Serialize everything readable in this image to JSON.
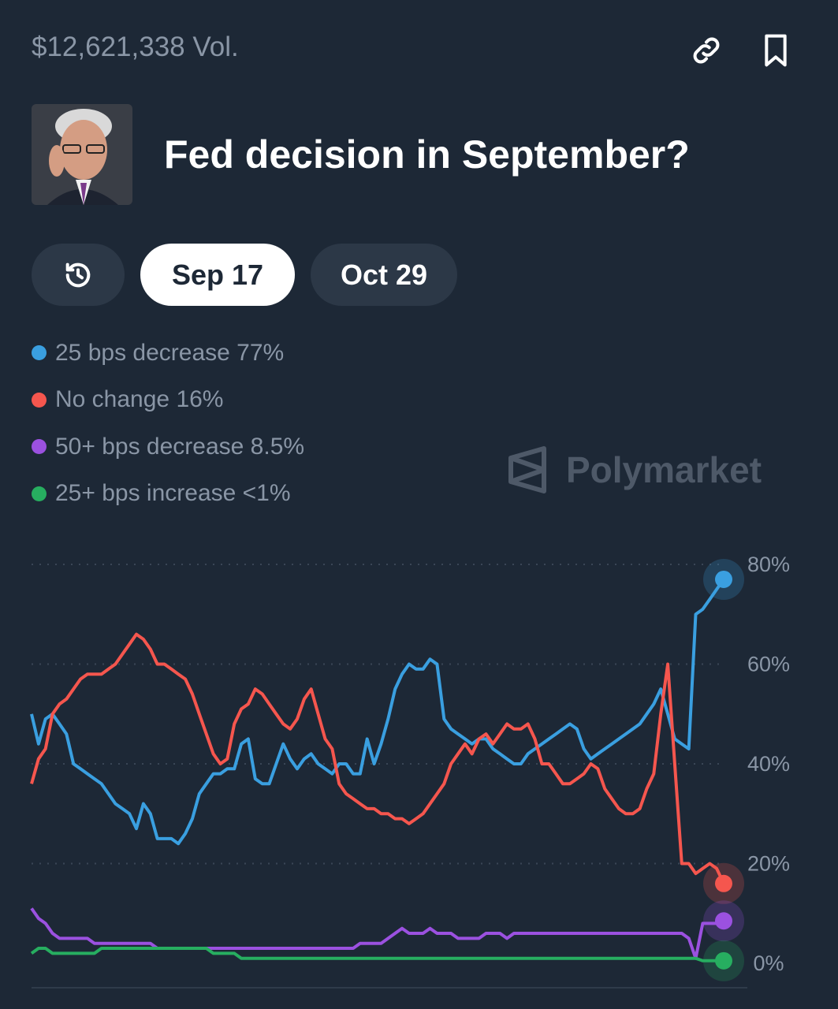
{
  "header": {
    "volume": "$12,621,338 Vol."
  },
  "market": {
    "title": "Fed decision in September?"
  },
  "tabs": [
    {
      "label": "",
      "icon": "history-icon"
    },
    {
      "label": "Sep 17",
      "active": true
    },
    {
      "label": "Oct 29"
    }
  ],
  "watermark": "Polymarket",
  "legend": [
    {
      "label": "25 bps decrease 77%",
      "color": "#3a9fe0"
    },
    {
      "label": "No change 16%",
      "color": "#f5564e"
    },
    {
      "label": "50+ bps decrease 8.5%",
      "color": "#9b51e0"
    },
    {
      "label": "25+ bps increase <1%",
      "color": "#27ae60"
    }
  ],
  "chart_data": {
    "type": "line",
    "ylim": [
      0,
      80
    ],
    "yticks": [
      "80%",
      "60%",
      "40%",
      "20%",
      "0%"
    ],
    "ytick_values": [
      80,
      60,
      40,
      20,
      0
    ],
    "grid": true,
    "series": [
      {
        "name": "25 bps decrease",
        "color": "#3a9fe0",
        "values": [
          50,
          44,
          49,
          50,
          48,
          46,
          40,
          39,
          38,
          37,
          36,
          34,
          32,
          31,
          30,
          27,
          32,
          30,
          25,
          25,
          25,
          24,
          26,
          29,
          34,
          36,
          38,
          38,
          39,
          39,
          44,
          45,
          37,
          36,
          36,
          40,
          44,
          41,
          39,
          41,
          42,
          40,
          39,
          38,
          40,
          40,
          38,
          38,
          45,
          40,
          44,
          49,
          55,
          58,
          60,
          59,
          59,
          61,
          60,
          49,
          47,
          46,
          45,
          44,
          45,
          45,
          43,
          42,
          41,
          40,
          40,
          42,
          43,
          44,
          45,
          46,
          47,
          48,
          47,
          43,
          41,
          42,
          43,
          44,
          45,
          46,
          47,
          48,
          50,
          52,
          55,
          50,
          45,
          44,
          43,
          70,
          71,
          73,
          75,
          77
        ]
      },
      {
        "name": "No change",
        "color": "#f5564e",
        "values": [
          36,
          41,
          43,
          50,
          52,
          53,
          55,
          57,
          58,
          58,
          58,
          59,
          60,
          62,
          64,
          66,
          65,
          63,
          60,
          60,
          59,
          58,
          57,
          54,
          50,
          46,
          42,
          40,
          41,
          48,
          51,
          52,
          55,
          54,
          52,
          50,
          48,
          47,
          49,
          53,
          55,
          50,
          45,
          43,
          36,
          34,
          33,
          32,
          31,
          31,
          30,
          30,
          29,
          29,
          28,
          29,
          30,
          32,
          34,
          36,
          40,
          42,
          44,
          42,
          45,
          46,
          44,
          46,
          48,
          47,
          47,
          48,
          45,
          40,
          40,
          38,
          36,
          36,
          37,
          38,
          40,
          39,
          35,
          33,
          31,
          30,
          30,
          31,
          35,
          38,
          50,
          60,
          40,
          20,
          20,
          18,
          19,
          20,
          19,
          16
        ]
      },
      {
        "name": "50+ bps decrease",
        "color": "#9b51e0",
        "values": [
          11,
          9,
          8,
          6,
          5,
          5,
          5,
          5,
          5,
          4,
          4,
          4,
          4,
          4,
          4,
          4,
          4,
          4,
          3,
          3,
          3,
          3,
          3,
          3,
          3,
          3,
          3,
          3,
          3,
          3,
          3,
          3,
          3,
          3,
          3,
          3,
          3,
          3,
          3,
          3,
          3,
          3,
          3,
          3,
          3,
          3,
          3,
          4,
          4,
          4,
          4,
          5,
          6,
          7,
          6,
          6,
          6,
          7,
          6,
          6,
          6,
          5,
          5,
          5,
          5,
          6,
          6,
          6,
          5,
          6,
          6,
          6,
          6,
          6,
          6,
          6,
          6,
          6,
          6,
          6,
          6,
          6,
          6,
          6,
          6,
          6,
          6,
          6,
          6,
          6,
          6,
          6,
          6,
          6,
          5,
          1,
          8,
          8,
          8,
          8.5
        ]
      },
      {
        "name": "25+ bps increase",
        "color": "#27ae60",
        "values": [
          2,
          3,
          3,
          2,
          2,
          2,
          2,
          2,
          2,
          2,
          3,
          3,
          3,
          3,
          3,
          3,
          3,
          3,
          3,
          3,
          3,
          3,
          3,
          3,
          3,
          3,
          2,
          2,
          2,
          2,
          1,
          1,
          1,
          1,
          1,
          1,
          1,
          1,
          1,
          1,
          1,
          1,
          1,
          1,
          1,
          1,
          1,
          1,
          1,
          1,
          1,
          1,
          1,
          1,
          1,
          1,
          1,
          1,
          1,
          1,
          1,
          1,
          1,
          1,
          1,
          1,
          1,
          1,
          1,
          1,
          1,
          1,
          1,
          1,
          1,
          1,
          1,
          1,
          1,
          1,
          1,
          1,
          1,
          1,
          1,
          1,
          1,
          1,
          1,
          1,
          1,
          1,
          1,
          1,
          1,
          1,
          0.5,
          0.5,
          0.5,
          0.5
        ]
      }
    ]
  }
}
